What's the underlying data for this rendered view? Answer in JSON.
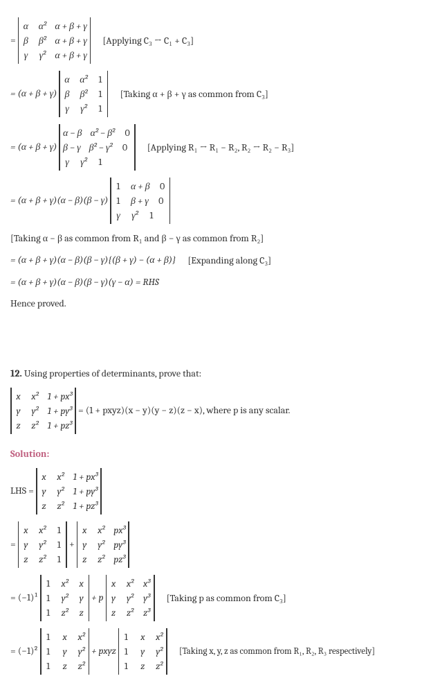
{
  "line1": {
    "eq": "=",
    "matrix": [
      [
        "α",
        "α²",
        "α + β + γ"
      ],
      [
        "β",
        "β²",
        "α + β + γ"
      ],
      [
        "γ",
        "γ²",
        "α + β + γ"
      ]
    ],
    "note": "[Applying C₃ → C₁ + C₃]"
  },
  "line2": {
    "prefix": "= (α + β + γ)",
    "matrix": [
      [
        "α",
        "α²",
        "1"
      ],
      [
        "β",
        "β²",
        "1"
      ],
      [
        "γ",
        "γ²",
        "1"
      ]
    ],
    "note": "[Taking α + β + γ as common from C₃]"
  },
  "line3": {
    "prefix": "= (α + β + γ)",
    "matrix": [
      [
        "α − β",
        "α² − β²",
        "0"
      ],
      [
        "β − γ",
        "β² − γ²",
        "0"
      ],
      [
        "γ",
        "γ²",
        "1"
      ]
    ],
    "note": "[Applying R₁ → R₁ − R₂, R₂ → R₂ − R₃]"
  },
  "line4": {
    "prefix": "= (α + β + γ)(α − β)(β − γ)",
    "matrix": [
      [
        "1",
        "α + β",
        "0"
      ],
      [
        "1",
        "β + γ",
        "0"
      ],
      [
        "γ",
        "γ²",
        "1"
      ]
    ]
  },
  "line5": "[Taking α − β as common from R₁ and β − γ as common from R₂]",
  "line6": {
    "text": "= (α + β + γ)(α − β)(β − γ){(β + γ) − (α + β)}",
    "note": "[Expanding along C₃]"
  },
  "line7": "= (α + β + γ)(α − β)(β − γ)(γ − α) = RHS",
  "line8": "Hence proved.",
  "q12": {
    "num": "12.",
    "intro": " Using properties of determinants, prove that:",
    "matrix": [
      [
        "x",
        "x²",
        "1 + px³"
      ],
      [
        "y",
        "y²",
        "1 + py³"
      ],
      [
        "z",
        "z²",
        "1 + pz³"
      ]
    ],
    "rhs": " = (1 + pxyz)(x − y)(y − z)(z − x), where p is any scalar."
  },
  "sol": "Solution:",
  "sline1": {
    "prefix": "LHS = ",
    "matrix": [
      [
        "x",
        "x²",
        "1 + px³"
      ],
      [
        "y",
        "y²",
        "1 + py³"
      ],
      [
        "z",
        "z²",
        "1 + pz³"
      ]
    ]
  },
  "sline2": {
    "eq": "= ",
    "m1": [
      [
        "x",
        "x²",
        "1"
      ],
      [
        "y",
        "y²",
        "1"
      ],
      [
        "z",
        "z²",
        "1"
      ]
    ],
    "plus": " + ",
    "m2": [
      [
        "x",
        "x²",
        "px³"
      ],
      [
        "y",
        "y²",
        "py³"
      ],
      [
        "z",
        "z²",
        "pz³"
      ]
    ]
  },
  "sline3": {
    "prefix": "= (−1)¹ ",
    "m1": [
      [
        "1",
        "x²",
        "x"
      ],
      [
        "1",
        "y²",
        "y"
      ],
      [
        "1",
        "z²",
        "z"
      ]
    ],
    "plus": " + p ",
    "m2": [
      [
        "x",
        "x²",
        "x³"
      ],
      [
        "y",
        "y²",
        "y³"
      ],
      [
        "z",
        "z²",
        "z³"
      ]
    ],
    "note": "[Taking p as common from C₃]"
  },
  "sline4": {
    "prefix": "= (−1)² ",
    "m1": [
      [
        "1",
        "x",
        "x²"
      ],
      [
        "1",
        "y",
        "y²"
      ],
      [
        "1",
        "z",
        "z²"
      ]
    ],
    "plus": " + pxyz ",
    "m2": [
      [
        "1",
        "x",
        "x²"
      ],
      [
        "1",
        "y",
        "y²"
      ],
      [
        "1",
        "z",
        "z²"
      ]
    ],
    "note": "[Taking x, y, z as common from R₁, R₂, R₃ respectively]"
  }
}
